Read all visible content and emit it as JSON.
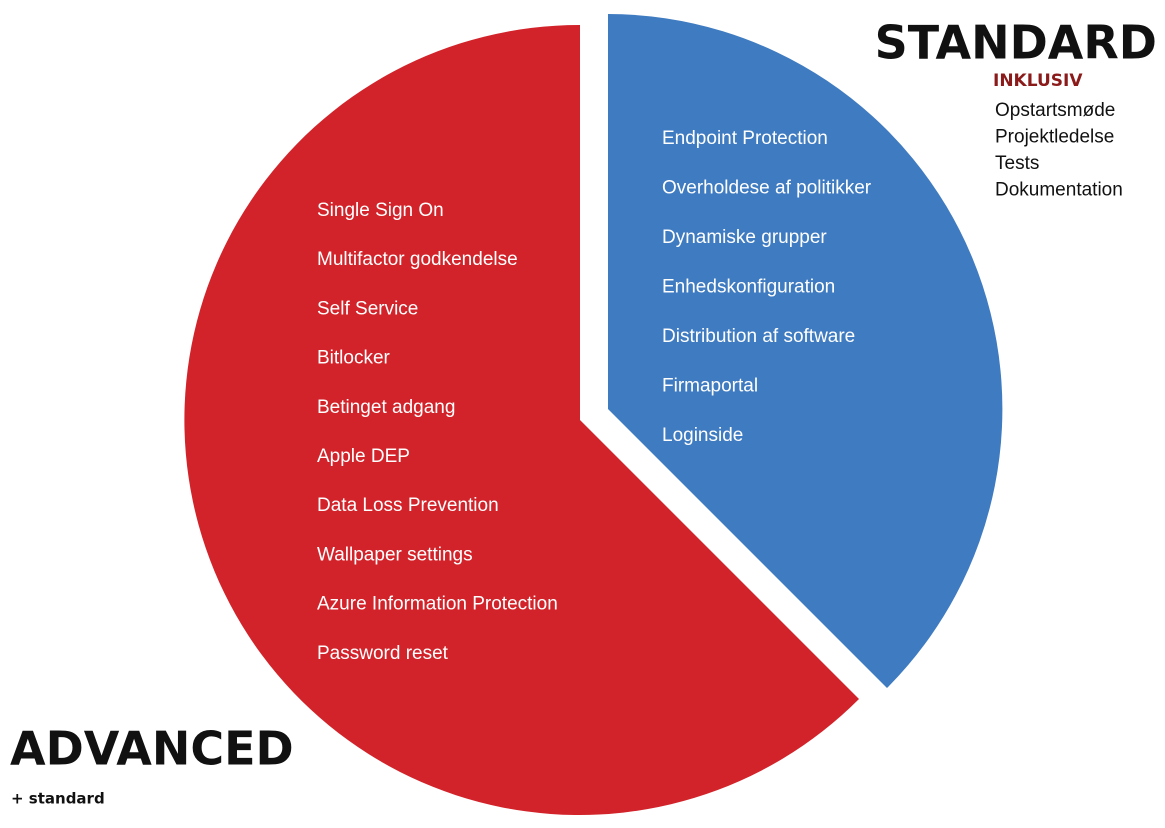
{
  "standard": {
    "title": "STANDARD",
    "subtitle": "INKLUSIV",
    "includes": [
      "Opstartsmøde",
      "Projektledelse",
      "Tests",
      "Dokumentation"
    ],
    "features": [
      "Endpoint Protection",
      "Overholdese af politikker",
      "Dynamiske grupper",
      "Enhedskonfiguration",
      "Distribution af software",
      "Firmaportal",
      "Loginside"
    ]
  },
  "advanced": {
    "title": "ADVANCED",
    "subtitle": "+ standard",
    "features": [
      "Single Sign On",
      "Multifactor godkendelse",
      "Self Service",
      "Bitlocker",
      "Betinget adgang",
      "Apple DEP",
      "Data Loss Prevention",
      "Wallpaper settings",
      "Azure Information Protection",
      "Password reset"
    ]
  }
}
